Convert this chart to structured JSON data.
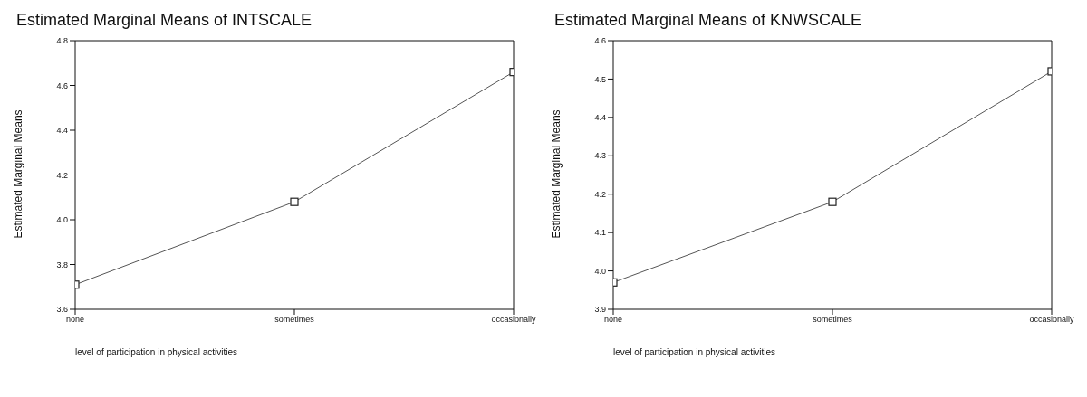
{
  "chart_data": [
    {
      "type": "line",
      "title": "Estimated Marginal Means of INTSCALE",
      "xlabel": "level of participation in physical activities",
      "ylabel": "Estimated Marginal Means",
      "categories": [
        "none",
        "sometimes",
        "occasionally"
      ],
      "values": [
        3.71,
        4.08,
        4.66
      ],
      "color": "#555555",
      "ylim": [
        3.6,
        4.8
      ],
      "yticks": [
        3.6,
        3.8,
        {
          "value": 4.0,
          "label": "4.0"
        },
        4.2,
        4.4,
        4.6,
        4.8
      ],
      "marker": "square",
      "grid": false,
      "legend": false
    },
    {
      "type": "line",
      "title": "Estimated Marginal Means of KNWSCALE",
      "xlabel": "level of participation in physical activities",
      "ylabel": "Estimated Marginal Means",
      "categories": [
        "none",
        "sometimes",
        "occasionally"
      ],
      "values": [
        3.97,
        4.18,
        4.52
      ],
      "color": "#555555",
      "ylim": [
        3.9,
        4.6
      ],
      "yticks": [
        3.9,
        {
          "value": 4.0,
          "label": "4.0"
        },
        4.1,
        4.2,
        4.3,
        4.4,
        4.5,
        4.6
      ],
      "marker": "square",
      "grid": false,
      "legend": false
    }
  ]
}
